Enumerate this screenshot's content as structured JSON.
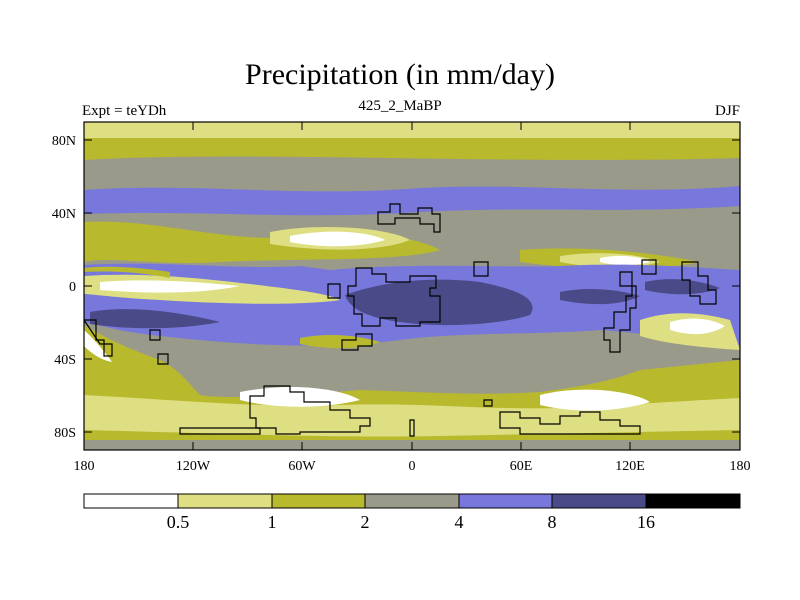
{
  "title": "Precipitation (in mm/day)",
  "left_label": "Expt = teYDh",
  "center_label": "425_2_MaBP",
  "right_label": "DJF",
  "lat_ticks": [
    "80N",
    "40N",
    "0",
    "40S",
    "80S"
  ],
  "lon_ticks": [
    "180",
    "120W",
    "60W",
    "0",
    "60E",
    "120E",
    "180"
  ],
  "colorbar": {
    "thresholds": [
      "0.5",
      "1",
      "2",
      "4",
      "8",
      "16"
    ],
    "colors": [
      "#ffffff",
      "#dede82",
      "#b9b92e",
      "#9a9a8a",
      "#7878dc",
      "#4a4a88",
      "#000000"
    ]
  }
}
